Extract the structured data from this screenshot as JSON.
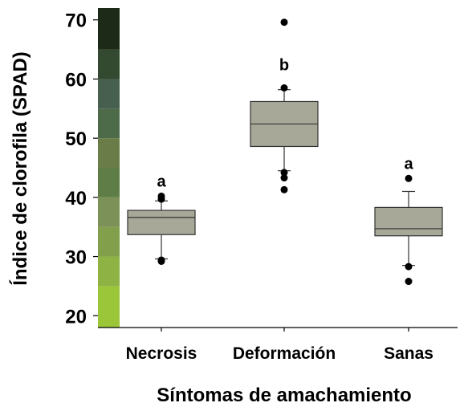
{
  "chart_data": {
    "type": "box",
    "xlabel": "Síntomas de amachamiento",
    "ylabel": "Índice de clorofila (SPAD)",
    "ylim": [
      18,
      72
    ],
    "yticks": [
      20,
      30,
      40,
      50,
      60,
      70
    ],
    "categories": [
      "Necrosis",
      "Deformación",
      "Sanas"
    ],
    "boxes": [
      {
        "category": "Necrosis",
        "whisker_low": 29.6,
        "q1": 33.7,
        "median": 36.6,
        "q3": 37.8,
        "whisker_high": 39.4,
        "outliers": [
          29.2,
          29.4,
          39.7,
          40.2
        ],
        "group": "a"
      },
      {
        "category": "Deformación",
        "whisker_low": 44.5,
        "q1": 48.6,
        "median": 52.4,
        "q3": 56.2,
        "whisker_high": 58.2,
        "outliers": [
          41.3,
          43.3,
          44.2,
          58.5,
          69.6
        ],
        "group": "b"
      },
      {
        "category": "Sanas",
        "whisker_low": 28.5,
        "q1": 33.5,
        "median": 34.7,
        "q3": 38.3,
        "whisker_high": 41.0,
        "outliers": [
          25.8,
          28.3,
          43.2
        ],
        "group": "a"
      }
    ],
    "box_color": "#a8a898",
    "color_scale": {
      "bands": [
        {
          "from": 18,
          "to": 25,
          "color": "#9cc63a"
        },
        {
          "from": 25,
          "to": 30,
          "color": "#8fb245"
        },
        {
          "from": 30,
          "to": 35,
          "color": "#82a04c"
        },
        {
          "from": 35,
          "to": 40,
          "color": "#7b9158"
        },
        {
          "from": 40,
          "to": 45,
          "color": "#5f7e47"
        },
        {
          "from": 45,
          "to": 50,
          "color": "#6a7d48"
        },
        {
          "from": 50,
          "to": 55,
          "color": "#4d6a49"
        },
        {
          "from": 55,
          "to": 60,
          "color": "#475f4e"
        },
        {
          "from": 60,
          "to": 65,
          "color": "#344a30"
        },
        {
          "from": 65,
          "to": 72,
          "color": "#1c2a17"
        }
      ]
    }
  }
}
